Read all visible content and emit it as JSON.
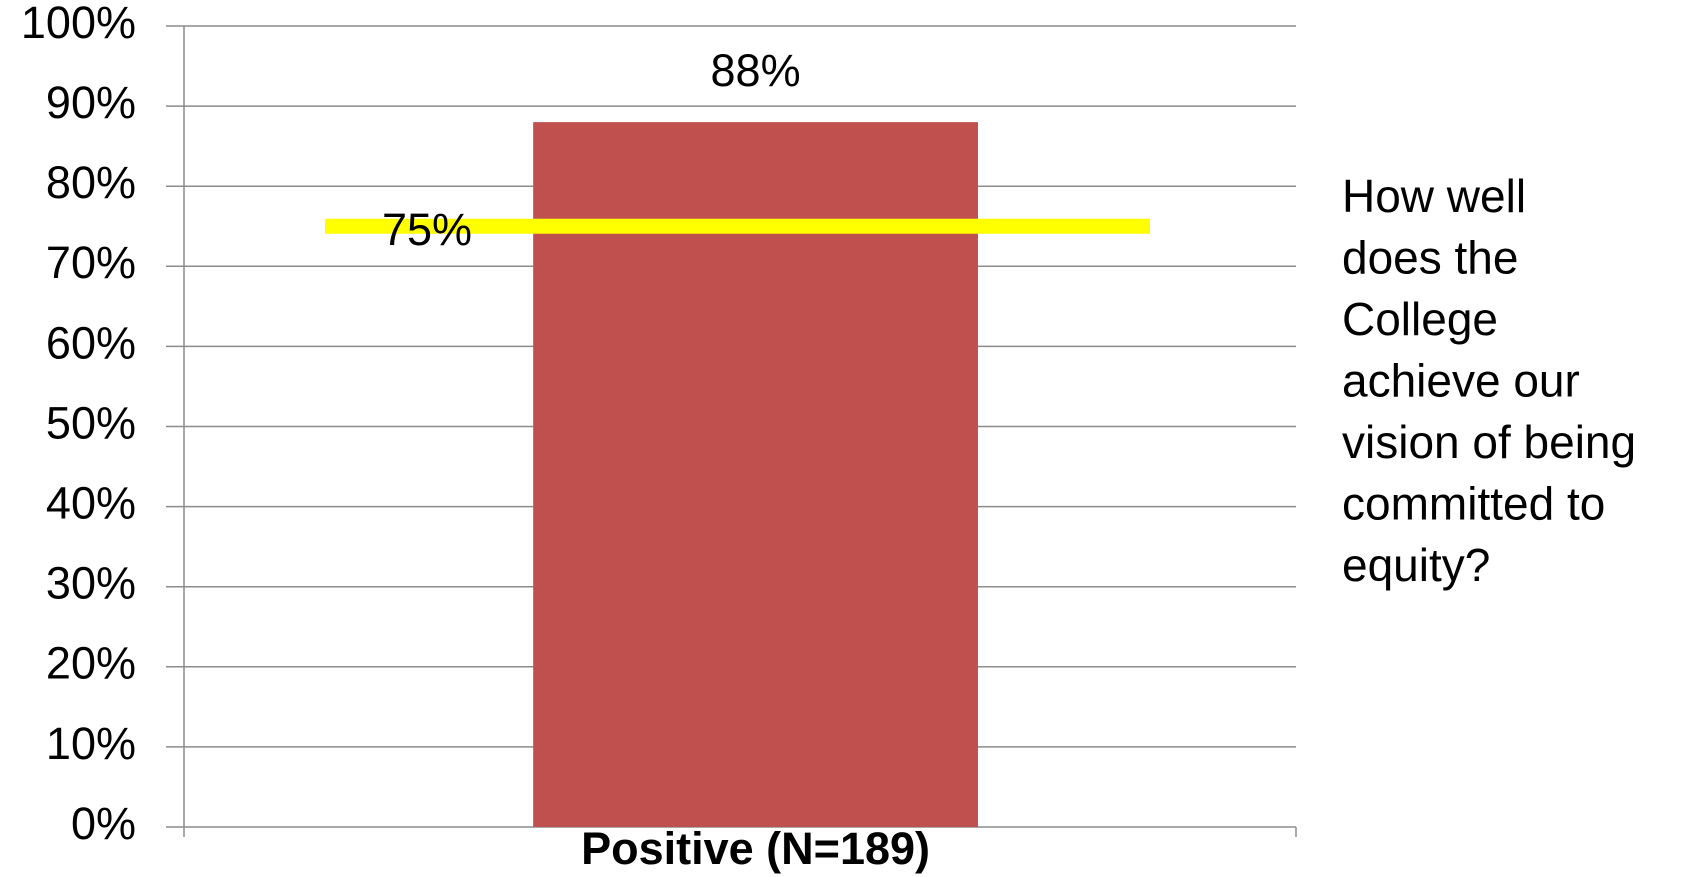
{
  "chart_data": {
    "type": "bar",
    "categories": [
      "Positive (N=189)"
    ],
    "values": [
      88
    ],
    "value_labels": [
      "88%"
    ],
    "color": "#c0504d",
    "ylim": [
      0,
      100
    ],
    "yticks": [
      {
        "value": 0,
        "label": "0%"
      },
      {
        "value": 10,
        "label": "10%"
      },
      {
        "value": 20,
        "label": "20%"
      },
      {
        "value": 30,
        "label": "30%"
      },
      {
        "value": 40,
        "label": "40%"
      },
      {
        "value": 50,
        "label": "50%"
      },
      {
        "value": 60,
        "label": "60%"
      },
      {
        "value": 70,
        "label": "70%"
      },
      {
        "value": 80,
        "label": "80%"
      },
      {
        "value": 90,
        "label": "90%"
      },
      {
        "value": 100,
        "label": "100%"
      }
    ],
    "grid": true,
    "reference_line": {
      "value": 75,
      "label": "75%",
      "color": "#ffff00"
    },
    "annotation": [
      "How well",
      "does the",
      "College",
      "achieve our",
      "vision of being",
      "committed to",
      "equity?"
    ]
  }
}
